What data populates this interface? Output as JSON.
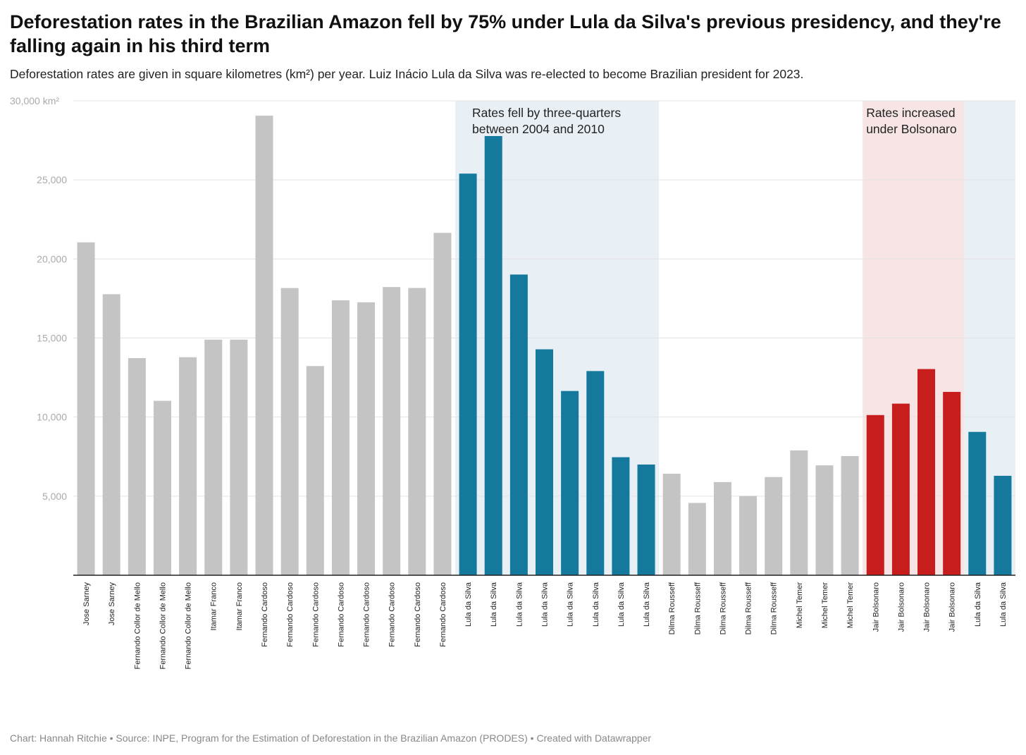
{
  "title": "Deforestation rates in the Brazilian Amazon fell by 75% under Lula da Silva's previous presidency, and they're falling again in his third term",
  "subtitle": "Deforestation rates are given in square kilometres (km²) per year. Luiz Inácio Lula da Silva was re-elected to become Brazilian president for 2023.",
  "footer": "Chart: Hannah Ritchie • Source: INPE, Program for the Estimation of Deforestation in the Brazilian Amazon (PRODES) • Created with Datawrapper",
  "chart_data": {
    "type": "bar",
    "ylim": [
      0,
      30000
    ],
    "grid": true,
    "yticks": [
      {
        "v": 30000,
        "label": "30,000 km²"
      },
      {
        "v": 25000,
        "label": "25,000"
      },
      {
        "v": 20000,
        "label": "20,000"
      },
      {
        "v": 15000,
        "label": "15,000"
      },
      {
        "v": 10000,
        "label": "10,000"
      },
      {
        "v": 5000,
        "label": "5,000"
      }
    ],
    "categories": [
      "Jose Sarney",
      "Jose Sarney",
      "Fernando Collor de Mello",
      "Fernando Collor de Mello",
      "Fernando Collor de Mello",
      "Itamar Franco",
      "Itamar Franco",
      "Fernando Cardoso",
      "Fernando Cardoso",
      "Fernando Cardoso",
      "Fernando Cardoso",
      "Fernando Cardoso",
      "Fernando Cardoso",
      "Fernando Cardoso",
      "Fernando Cardoso",
      "Lula da Silva",
      "Lula da Silva",
      "Lula da Silva",
      "Lula da Silva",
      "Lula da Silva",
      "Lula da Silva",
      "Lula da Silva",
      "Lula da Silva",
      "Dilma Rousseff",
      "Dilma Rousseff",
      "Dilma Rousseff",
      "Dilma Rousseff",
      "Dilma Rousseff",
      "Michel Temer",
      "Michel Temer",
      "Michel Temer",
      "Jair Bolsonaro",
      "Jair Bolsonaro",
      "Jair Bolsonaro",
      "Jair Bolsonaro",
      "Lula da Silva",
      "Lula da Silva"
    ],
    "values": [
      21050,
      17770,
      13730,
      11030,
      13786,
      14896,
      14896,
      29059,
      18161,
      13227,
      17383,
      17259,
      18226,
      18165,
      21650,
      25396,
      27772,
      19014,
      14286,
      11651,
      12911,
      7464,
      7000,
      6418,
      4571,
      5891,
      5012,
      6207,
      7893,
      6947,
      7536,
      10129,
      10851,
      13038,
      11594,
      9064,
      6288
    ],
    "colors": {
      "default": "#c4c4c4",
      "Lula da Silva": "#15799e",
      "Jair Bolsonaro": "#c71e1d"
    },
    "highlight_ranges": [
      {
        "from": 15,
        "to": 22,
        "color": "#e8f0f6",
        "label": [
          "Rates fell by three-quarters",
          "between 2004 and 2010"
        ]
      },
      {
        "from": 31,
        "to": 34,
        "color": "#f7e5e5",
        "label": [
          "Rates increased",
          "under Bolsonaro"
        ]
      },
      {
        "from": 35,
        "to": 36,
        "color": "#e8f0f6"
      }
    ]
  }
}
